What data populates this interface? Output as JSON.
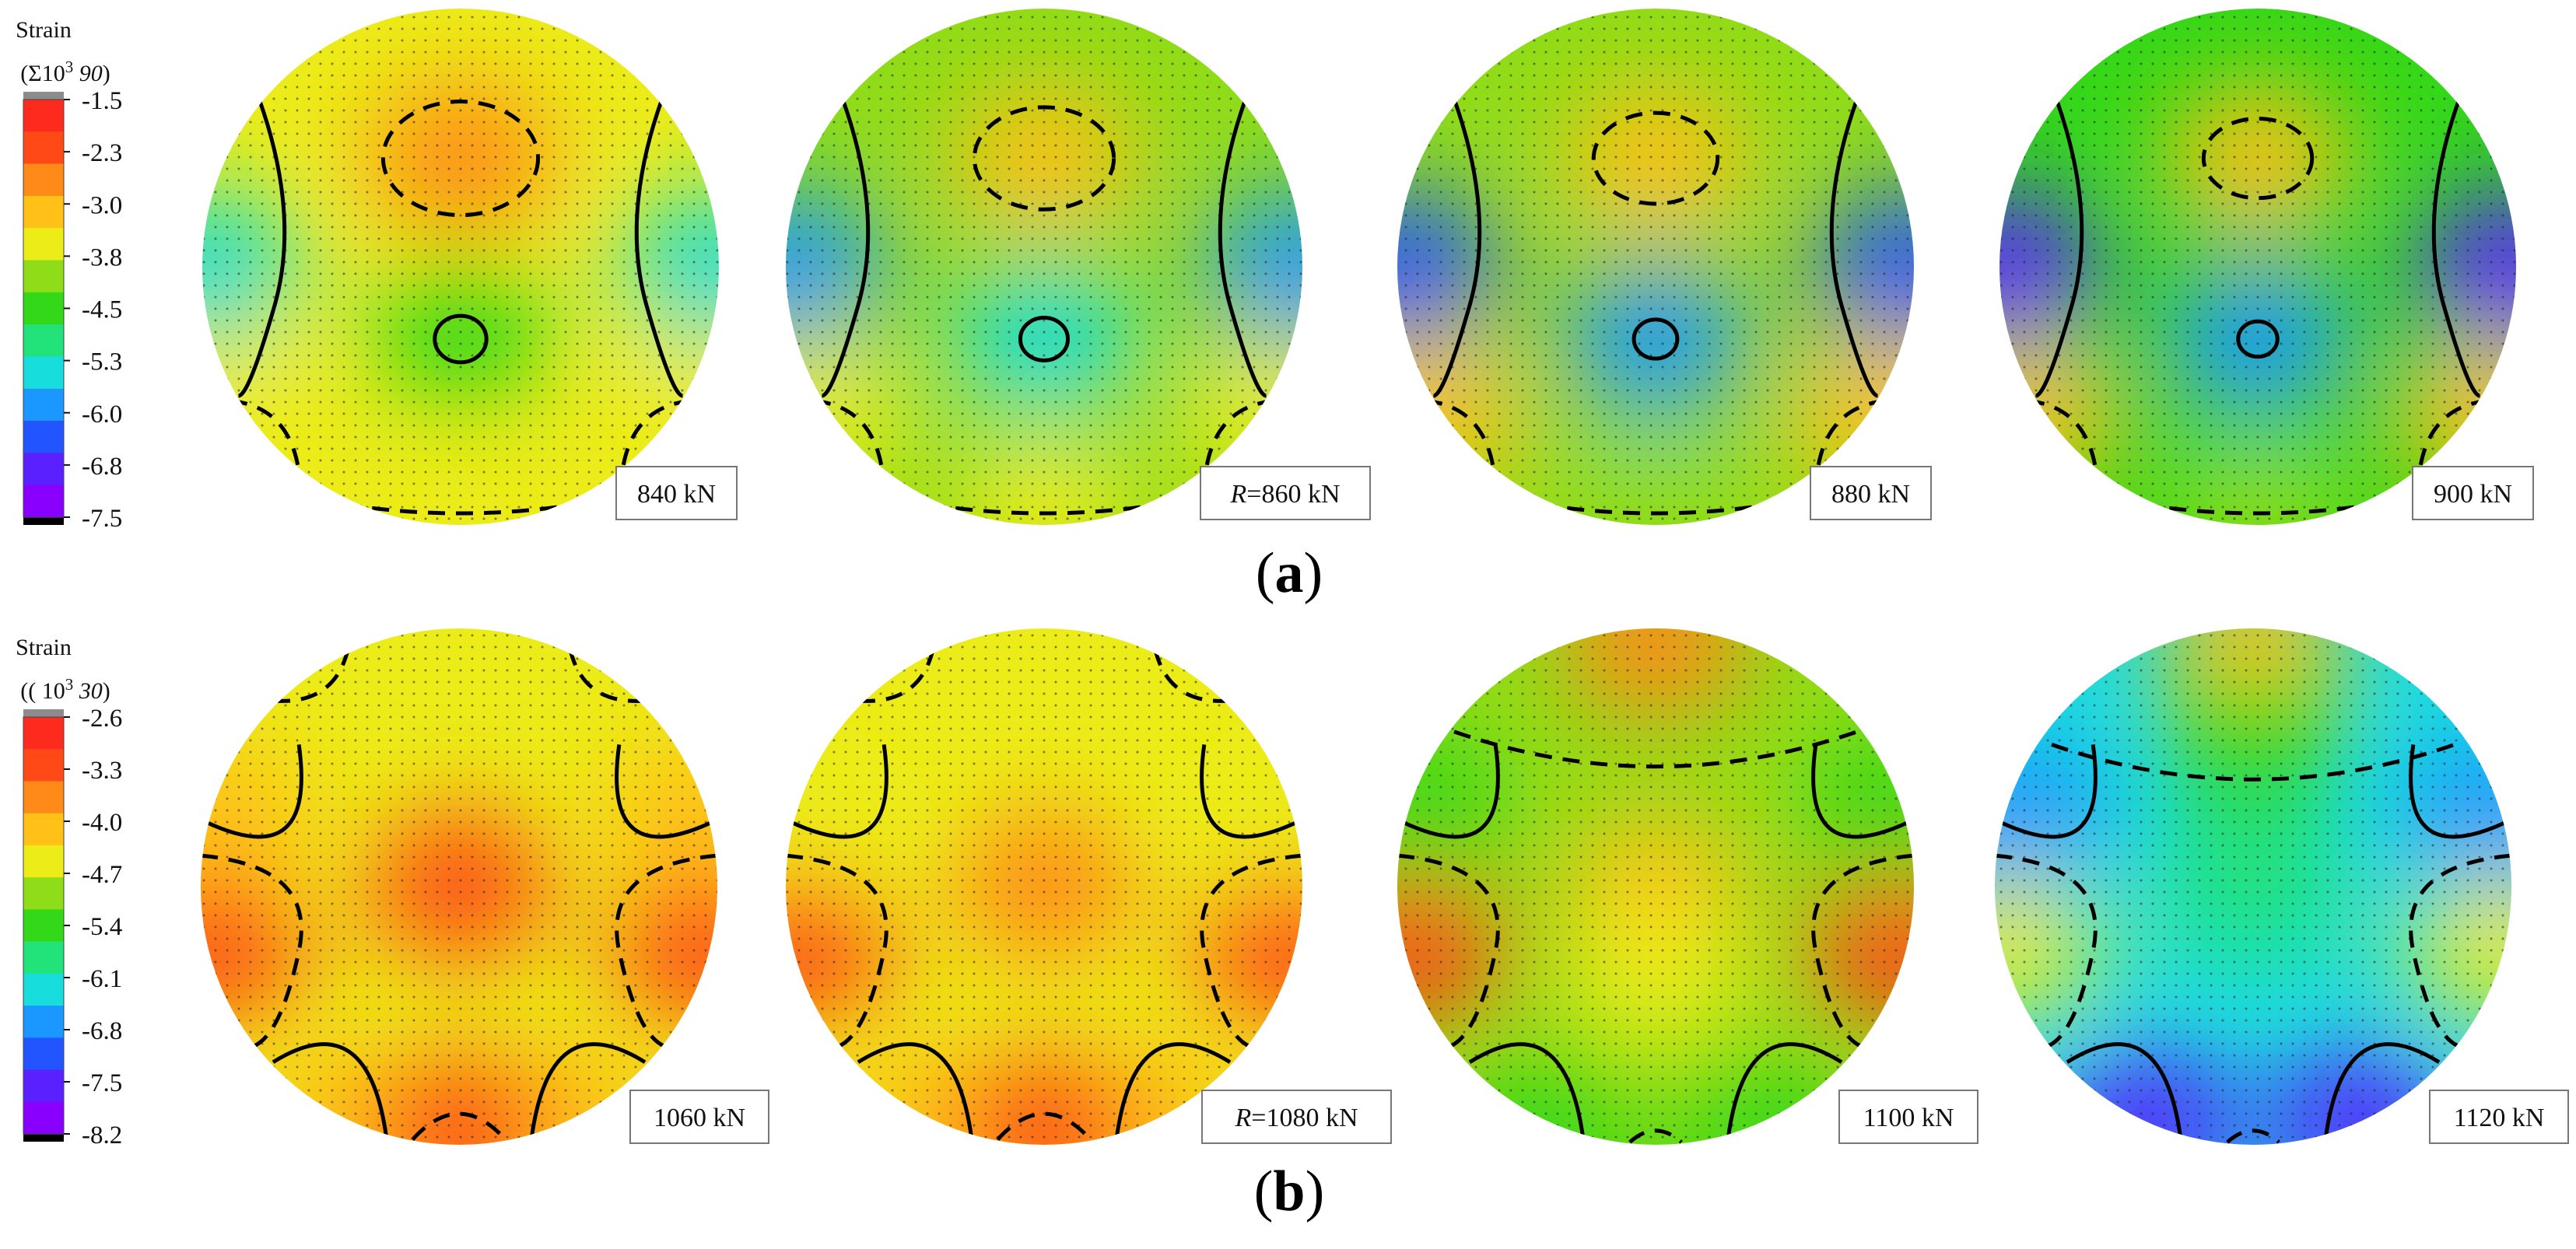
{
  "colors": {
    "scale": [
      "#8a00ff",
      "#5a20ff",
      "#2255ff",
      "#1a98ff",
      "#18dddd",
      "#22e27a",
      "#33d818",
      "#8fdc18",
      "#ecec18",
      "#ffc018",
      "#ff8a18",
      "#ff4a18",
      "#ff2a1e"
    ],
    "over": "#8c8c8c",
    "under": "#000000",
    "dots": "#1f1f1f",
    "contour": "#000000"
  },
  "panels": [
    {
      "caption_open": "(",
      "caption_letter": "a",
      "caption_close": ")",
      "legend": {
        "title_line1": "Strain",
        "title_open": "(Σ10",
        "title_exp": "3",
        "title_it": " 90",
        "title_close": ")",
        "ticks": [
          "-1.5",
          "-2.3",
          "-3.0",
          "-3.8",
          "-4.5",
          "-5.3",
          "-6.0",
          "-6.8",
          "-7.5"
        ]
      },
      "maps": [
        {
          "label_prefix": "",
          "label_rest": "840 kN",
          "range": [
            -5.6,
            -2.6
          ],
          "blobs": [
            {
              "value": -2.6,
              "at": [
                0.0,
                -0.42
              ]
            },
            {
              "value": -3.4,
              "at": [
                -0.88,
                0.58
              ]
            },
            {
              "value": -3.4,
              "at": [
                0.88,
                0.58
              ]
            },
            {
              "value": -3.6,
              "at": [
                0.0,
                0.96
              ]
            },
            {
              "value": -5.6,
              "at": [
                -0.98,
                0.0
              ]
            },
            {
              "value": -5.6,
              "at": [
                0.98,
                0.0
              ]
            },
            {
              "value": -4.6,
              "at": [
                0.0,
                0.28
              ]
            }
          ]
        },
        {
          "label_prefix": "R",
          "label_rest": "=860 kN",
          "range": [
            -6.0,
            -2.8
          ],
          "blobs": [
            {
              "value": -2.8,
              "at": [
                0.0,
                -0.42
              ]
            },
            {
              "value": -3.3,
              "at": [
                -0.88,
                0.58
              ]
            },
            {
              "value": -3.3,
              "at": [
                0.88,
                0.58
              ]
            },
            {
              "value": -3.6,
              "at": [
                0.0,
                0.96
              ]
            },
            {
              "value": -6.0,
              "at": [
                -0.98,
                0.0
              ]
            },
            {
              "value": -6.0,
              "at": [
                0.98,
                0.0
              ]
            },
            {
              "value": -5.4,
              "at": [
                0.0,
                0.28
              ]
            }
          ]
        },
        {
          "label_prefix": "",
          "label_rest": "880 kN",
          "range": [
            -6.6,
            -2.9
          ],
          "blobs": [
            {
              "value": -3.0,
              "at": [
                0.0,
                -0.42
              ]
            },
            {
              "value": -3.2,
              "at": [
                -0.88,
                0.58
              ]
            },
            {
              "value": -3.2,
              "at": [
                0.88,
                0.58
              ]
            },
            {
              "value": -3.8,
              "at": [
                0.0,
                0.96
              ]
            },
            {
              "value": -6.6,
              "at": [
                -0.98,
                0.0
              ]
            },
            {
              "value": -6.6,
              "at": [
                0.98,
                0.0
              ]
            },
            {
              "value": -5.8,
              "at": [
                0.0,
                0.28
              ]
            }
          ]
        },
        {
          "label_prefix": "",
          "label_rest": "900 kN",
          "range": [
            -7.2,
            -3.0
          ],
          "blobs": [
            {
              "value": -3.1,
              "at": [
                0.0,
                -0.42
              ]
            },
            {
              "value": -3.2,
              "at": [
                -0.88,
                0.58
              ]
            },
            {
              "value": -3.2,
              "at": [
                0.88,
                0.58
              ]
            },
            {
              "value": -4.0,
              "at": [
                0.0,
                0.96
              ]
            },
            {
              "value": -7.2,
              "at": [
                -0.98,
                0.0
              ]
            },
            {
              "value": -7.2,
              "at": [
                0.98,
                0.0
              ]
            },
            {
              "value": -6.2,
              "at": [
                0.0,
                0.28
              ]
            }
          ]
        }
      ]
    },
    {
      "caption_open": "(",
      "caption_letter": "b",
      "caption_close": ")",
      "legend": {
        "title_line1": "Strain",
        "title_open": "(( 10",
        "title_exp": "3",
        "title_it": " 30",
        "title_close": ")",
        "ticks": [
          "-2.6",
          "-3.3",
          "-4.0",
          "-4.7",
          "-5.4",
          "-6.1",
          "-6.8",
          "-7.5",
          "-8.2"
        ]
      },
      "maps": [
        {
          "label_prefix": "",
          "label_rest": "1060 kN",
          "range": [
            -4.3,
            -3.0
          ],
          "blobs": [
            {
              "value": -3.2,
              "at": [
                0.0,
                0.0
              ]
            },
            {
              "value": -3.9,
              "at": [
                -0.92,
                -0.28
              ]
            },
            {
              "value": -3.9,
              "at": [
                0.92,
                -0.28
              ]
            },
            {
              "value": -3.9,
              "at": [
                -0.42,
                0.92
              ]
            },
            {
              "value": -3.9,
              "at": [
                0.42,
                0.92
              ]
            },
            {
              "value": -3.0,
              "at": [
                -0.95,
                0.25
              ]
            },
            {
              "value": -3.0,
              "at": [
                0.95,
                0.25
              ]
            },
            {
              "value": -3.1,
              "at": [
                0.0,
                0.95
              ]
            }
          ]
        },
        {
          "label_prefix": "R",
          "label_rest": "=1080 kN",
          "range": [
            -4.5,
            -3.1
          ],
          "blobs": [
            {
              "value": -3.5,
              "at": [
                0.0,
                0.0
              ]
            },
            {
              "value": -4.4,
              "at": [
                -0.92,
                -0.28
              ]
            },
            {
              "value": -4.4,
              "at": [
                0.92,
                -0.28
              ]
            },
            {
              "value": -4.2,
              "at": [
                -0.42,
                0.92
              ]
            },
            {
              "value": -4.2,
              "at": [
                0.42,
                0.92
              ]
            },
            {
              "value": -3.1,
              "at": [
                -0.95,
                0.25
              ]
            },
            {
              "value": -3.1,
              "at": [
                0.95,
                0.25
              ]
            },
            {
              "value": -3.2,
              "at": [
                0.0,
                0.95
              ]
            }
          ]
        },
        {
          "label_prefix": "",
          "label_rest": "1100 kN",
          "range": [
            -5.6,
            -3.3
          ],
          "blobs": [
            {
              "value": -4.0,
              "at": [
                0.0,
                0.0
              ]
            },
            {
              "value": -5.2,
              "at": [
                -0.92,
                -0.28
              ]
            },
            {
              "value": -5.2,
              "at": [
                0.92,
                -0.28
              ]
            },
            {
              "value": -5.6,
              "at": [
                -0.42,
                0.92
              ]
            },
            {
              "value": -5.6,
              "at": [
                0.42,
                0.92
              ]
            },
            {
              "value": -3.3,
              "at": [
                -0.95,
                0.25
              ]
            },
            {
              "value": -3.3,
              "at": [
                0.95,
                0.25
              ]
            },
            {
              "value": -3.6,
              "at": [
                0.0,
                -0.95
              ]
            },
            {
              "value": -4.4,
              "at": [
                0.0,
                0.35
              ]
            }
          ]
        },
        {
          "label_prefix": "",
          "label_rest": "1120 kN",
          "range": [
            -7.9,
            -4.2
          ],
          "blobs": [
            {
              "value": -6.0,
              "at": [
                0.0,
                0.0
              ]
            },
            {
              "value": -6.6,
              "at": [
                -0.92,
                -0.28
              ]
            },
            {
              "value": -6.6,
              "at": [
                0.92,
                -0.28
              ]
            },
            {
              "value": -7.9,
              "at": [
                -0.42,
                0.92
              ]
            },
            {
              "value": -7.9,
              "at": [
                0.42,
                0.92
              ]
            },
            {
              "value": -4.6,
              "at": [
                -0.95,
                0.25
              ]
            },
            {
              "value": -4.6,
              "at": [
                0.95,
                0.25
              ]
            },
            {
              "value": -4.2,
              "at": [
                0.0,
                -0.95
              ]
            },
            {
              "value": -5.2,
              "at": [
                0.0,
                -0.55
              ]
            }
          ]
        }
      ]
    }
  ]
}
